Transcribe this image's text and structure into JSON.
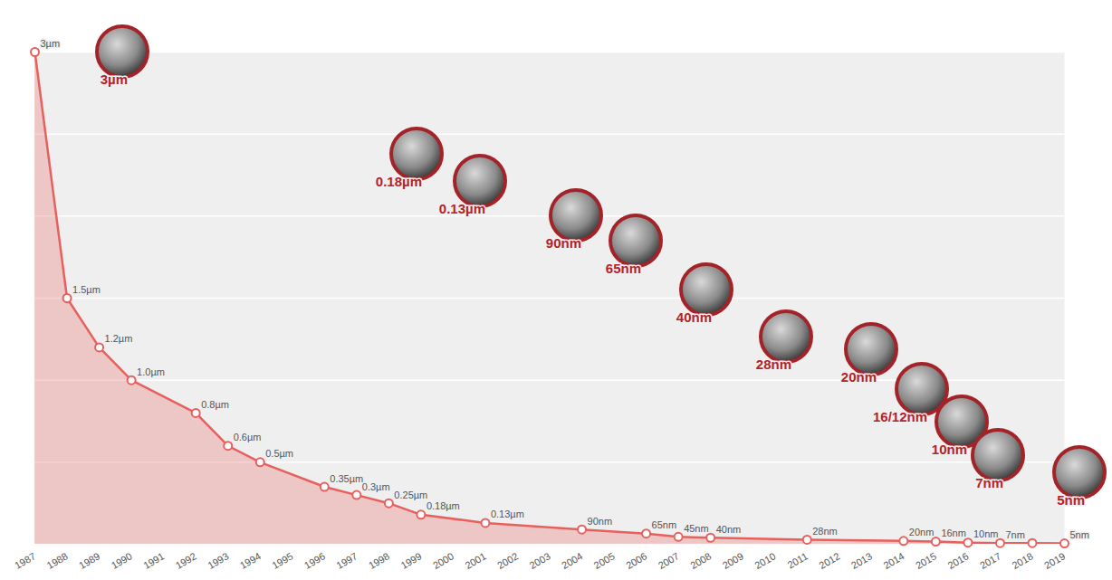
{
  "chart_data": {
    "type": "area",
    "x": [
      1987,
      1988,
      1989,
      1990,
      1992,
      1993,
      1994,
      1996,
      1997,
      1998,
      1999,
      2001,
      2004,
      2006,
      2007,
      2008,
      2011,
      2014,
      2015,
      2016,
      2017,
      2018,
      2019
    ],
    "values": [
      3,
      1.5,
      1.2,
      1.0,
      0.8,
      0.6,
      0.5,
      0.35,
      0.3,
      0.25,
      0.18,
      0.13,
      0.09,
      0.065,
      0.045,
      0.04,
      0.028,
      0.02,
      0.016,
      0.01,
      0.007,
      0.007,
      0.005
    ],
    "value_labels": [
      "3µm",
      "1.5µm",
      "1.2µm",
      "1.0µm",
      "0.8µm",
      "0.6µm",
      "0.5µm",
      "0.35µm",
      "0.3µm",
      "0.25µm",
      "0.18µm",
      "0.13µm",
      "90nm",
      "65nm",
      "45nm",
      "40nm",
      "28nm",
      "20nm",
      "16nm",
      "10nm",
      "7nm",
      null,
      "5nm"
    ],
    "color": "#e8605e",
    "marker": "circle",
    "data_labels": true,
    "xlim": [
      1987,
      2019
    ],
    "xticks": [
      1987,
      1988,
      1989,
      1990,
      1991,
      1992,
      1993,
      1994,
      1995,
      1996,
      1997,
      1998,
      1999,
      2000,
      2001,
      2002,
      2003,
      2004,
      2005,
      2006,
      2007,
      2008,
      2009,
      2010,
      2011,
      2012,
      2013,
      2014,
      2015,
      2016,
      2017,
      2018,
      2019
    ],
    "ylim": [
      0,
      3
    ],
    "yticks": [
      0,
      0.5,
      1,
      1.5,
      2,
      2.5,
      3
    ],
    "grid": true,
    "tick_labels": "x",
    "annotations": [
      {
        "text": "3µm"
      },
      {
        "text": "0.18µm"
      },
      {
        "text": "0.13µm"
      },
      {
        "text": "90nm"
      },
      {
        "text": "65nm"
      },
      {
        "text": "40nm"
      },
      {
        "text": "28nm"
      },
      {
        "text": "20nm"
      },
      {
        "text": "16/12nm"
      },
      {
        "text": "10nm"
      },
      {
        "text": "7nm"
      },
      {
        "text": "5nm"
      }
    ]
  }
}
